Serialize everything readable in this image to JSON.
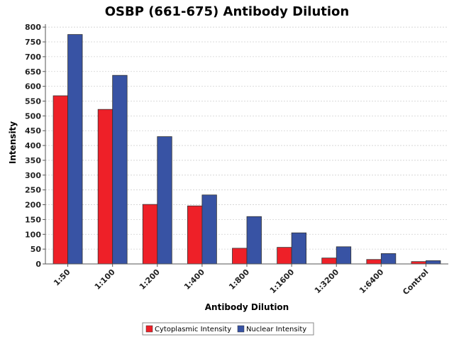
{
  "chart_data": {
    "type": "bar",
    "title": "OSBP (661-675) Antibody Dilution",
    "xlabel": "Antibody Dilution",
    "ylabel": "Intensity",
    "ylim": [
      0,
      810
    ],
    "yticks": [
      0,
      50,
      100,
      150,
      200,
      250,
      300,
      350,
      400,
      450,
      500,
      550,
      600,
      650,
      700,
      750,
      800
    ],
    "grid": true,
    "legend_position": "bottom",
    "categories": [
      "1:50",
      "1:100",
      "1:200",
      "1:400",
      "1:800",
      "1:1600",
      "1:3200",
      "1:6400",
      "Control"
    ],
    "series": [
      {
        "name": "Cytoplasmic Intensity",
        "color": "#ee2028",
        "values": [
          568,
          522,
          201,
          196,
          53,
          56,
          20,
          15,
          8
        ]
      },
      {
        "name": "Nuclear Intensity",
        "color": "#3853a4",
        "values": [
          775,
          637,
          430,
          233,
          160,
          105,
          58,
          35,
          11
        ]
      }
    ]
  }
}
